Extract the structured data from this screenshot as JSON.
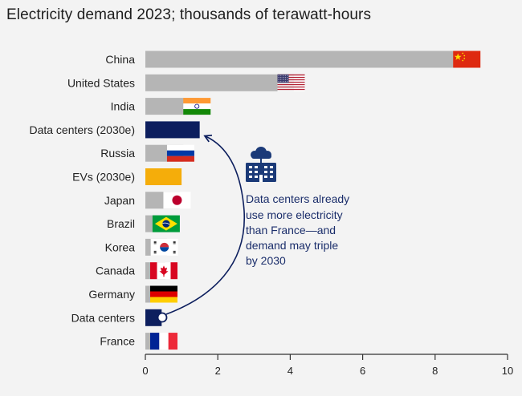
{
  "title": "Electricity demand 2023; thousands of terawatt-hours",
  "chart_data": {
    "type": "bar",
    "orientation": "horizontal",
    "title": "Electricity demand 2023; thousands of terawatt-hours",
    "xlabel": "",
    "ylabel": "",
    "xlim": [
      0,
      10
    ],
    "xticks": [
      0,
      2,
      4,
      6,
      8,
      10
    ],
    "grid": false,
    "categories": [
      "China",
      "United States",
      "India",
      "Data centers (2030e)",
      "Russia",
      "EVs (2030e)",
      "Japan",
      "Brazil",
      "Korea",
      "Canada",
      "Germany",
      "Data centers",
      "France"
    ],
    "values": [
      8.95,
      4.1,
      1.5,
      1.5,
      1.05,
      1.0,
      0.95,
      0.65,
      0.6,
      0.55,
      0.5,
      0.45,
      0.45
    ],
    "bar_kinds": [
      "country",
      "country",
      "country",
      "highlight",
      "country",
      "ev",
      "country",
      "country",
      "country",
      "country",
      "country",
      "highlight",
      "country"
    ],
    "flags": [
      "china-flag",
      "us-flag",
      "india-flag",
      "",
      "russia-flag",
      "",
      "japan-flag",
      "brazil-flag",
      "korea-flag",
      "canada-flag",
      "germany-flag",
      "",
      "france-flag"
    ],
    "colors": {
      "country_bar": "#b5b5b5",
      "highlight_bar": "#0d1f5e",
      "ev_bar": "#f5ad0a",
      "annotation": "#1b2e6b",
      "axis": "#333333"
    },
    "annotation": {
      "lines": [
        "Data centers already",
        "use more electricity",
        "than France—and",
        "demand may triple",
        "by 2030"
      ],
      "icon": "data-center-cloud-building-icon",
      "arrow_from": "Data centers",
      "arrow_to": "Data centers (2030e)"
    }
  }
}
